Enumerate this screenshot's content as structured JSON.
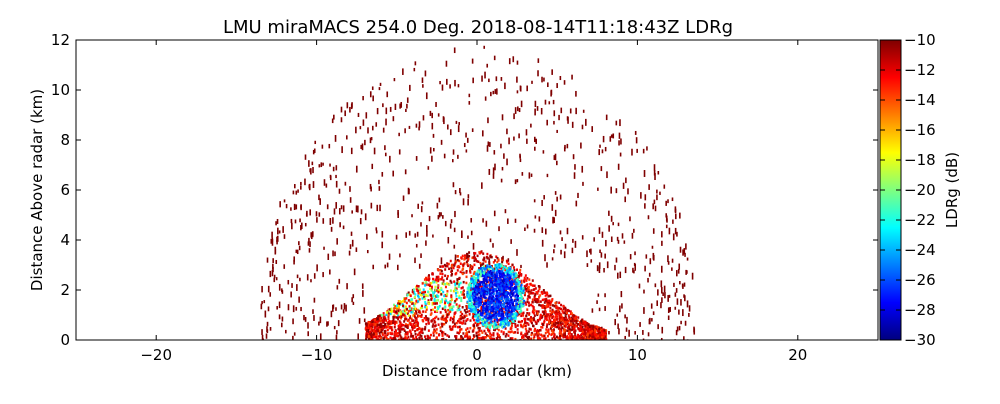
{
  "chart_data": {
    "type": "heatmap",
    "title": "LMU miraMACS 254.0 Deg. 2018-08-14T11:18:43Z  LDRg",
    "xlabel": "Distance from radar (km)",
    "ylabel": "Distance Above radar  (km)",
    "xlim": [
      -25,
      25
    ],
    "ylim": [
      0,
      12
    ],
    "x_ticks": [
      -20,
      -10,
      0,
      10,
      20
    ],
    "y_ticks": [
      0,
      2,
      4,
      6,
      8,
      10,
      12
    ],
    "x_tick_labels": [
      "−20",
      "−10",
      "0",
      "10",
      "20"
    ],
    "y_tick_labels": [
      "0",
      "2",
      "4",
      "6",
      "8",
      "10",
      "12"
    ],
    "colorbar": {
      "label": "LDRg (dB)",
      "range": [
        -30,
        -10
      ],
      "ticks": [
        -10,
        -12,
        -14,
        -16,
        -18,
        -20,
        -22,
        -24,
        -26,
        -28,
        -30
      ],
      "tick_labels": [
        "−10",
        "−12",
        "−14",
        "−16",
        "−18",
        "−20",
        "−22",
        "−24",
        "−26",
        "−28",
        "−30"
      ],
      "colormap": [
        "#00007f",
        "#0000ff",
        "#007fff",
        "#00ffff",
        "#7fff7f",
        "#ffff00",
        "#ff7f00",
        "#ff0000",
        "#7f0000"
      ]
    },
    "scan": {
      "azimuth_deg": 254.0,
      "sparse_cloud": {
        "x_range_km": [
          -13.5,
          13.5
        ],
        "y_range_km": [
          0,
          11.8
        ],
        "ldr_db": -10
      },
      "dense_region": {
        "x_range_km": [
          -7,
          8
        ],
        "y_range_km": [
          0,
          3.6
        ]
      },
      "depolarization_core": {
        "x_center_km": 1.5,
        "y_center_km": 1.8,
        "ldr_db": -29
      }
    }
  }
}
